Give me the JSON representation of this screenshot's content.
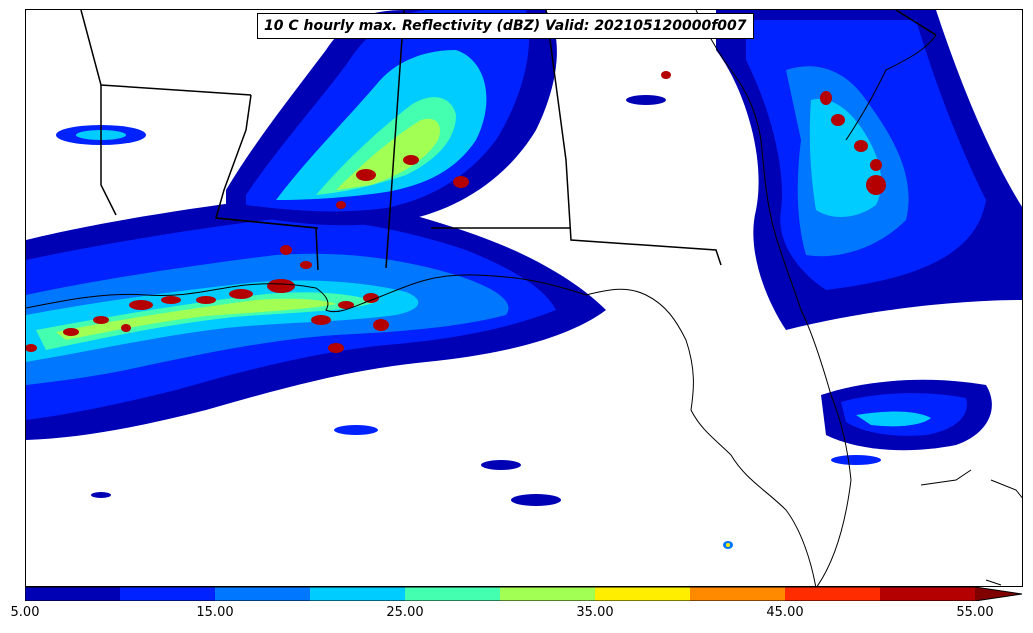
{
  "title": "10 C hourly max. Reflectivity (dBZ) Valid: 202105120000f007",
  "colorbar": {
    "bins": [
      {
        "from": 5,
        "to": 10,
        "color": "#0000b4"
      },
      {
        "from": 10,
        "to": 15,
        "color": "#0022ff"
      },
      {
        "from": 15,
        "to": 20,
        "color": "#0077ff"
      },
      {
        "from": 20,
        "to": 25,
        "color": "#00ccff"
      },
      {
        "from": 25,
        "to": 30,
        "color": "#45ffb0"
      },
      {
        "from": 30,
        "to": 35,
        "color": "#a2ff54"
      },
      {
        "from": 35,
        "to": 40,
        "color": "#ffee00"
      },
      {
        "from": 40,
        "to": 45,
        "color": "#ff8a00"
      },
      {
        "from": 45,
        "to": 50,
        "color": "#ff2c00"
      },
      {
        "from": 50,
        "to": 55,
        "color": "#b40000"
      }
    ],
    "extend_color": "#800000",
    "ticks": [
      "5.00",
      "15.00",
      "25.00",
      "35.00",
      "45.00",
      "55.00"
    ]
  }
}
